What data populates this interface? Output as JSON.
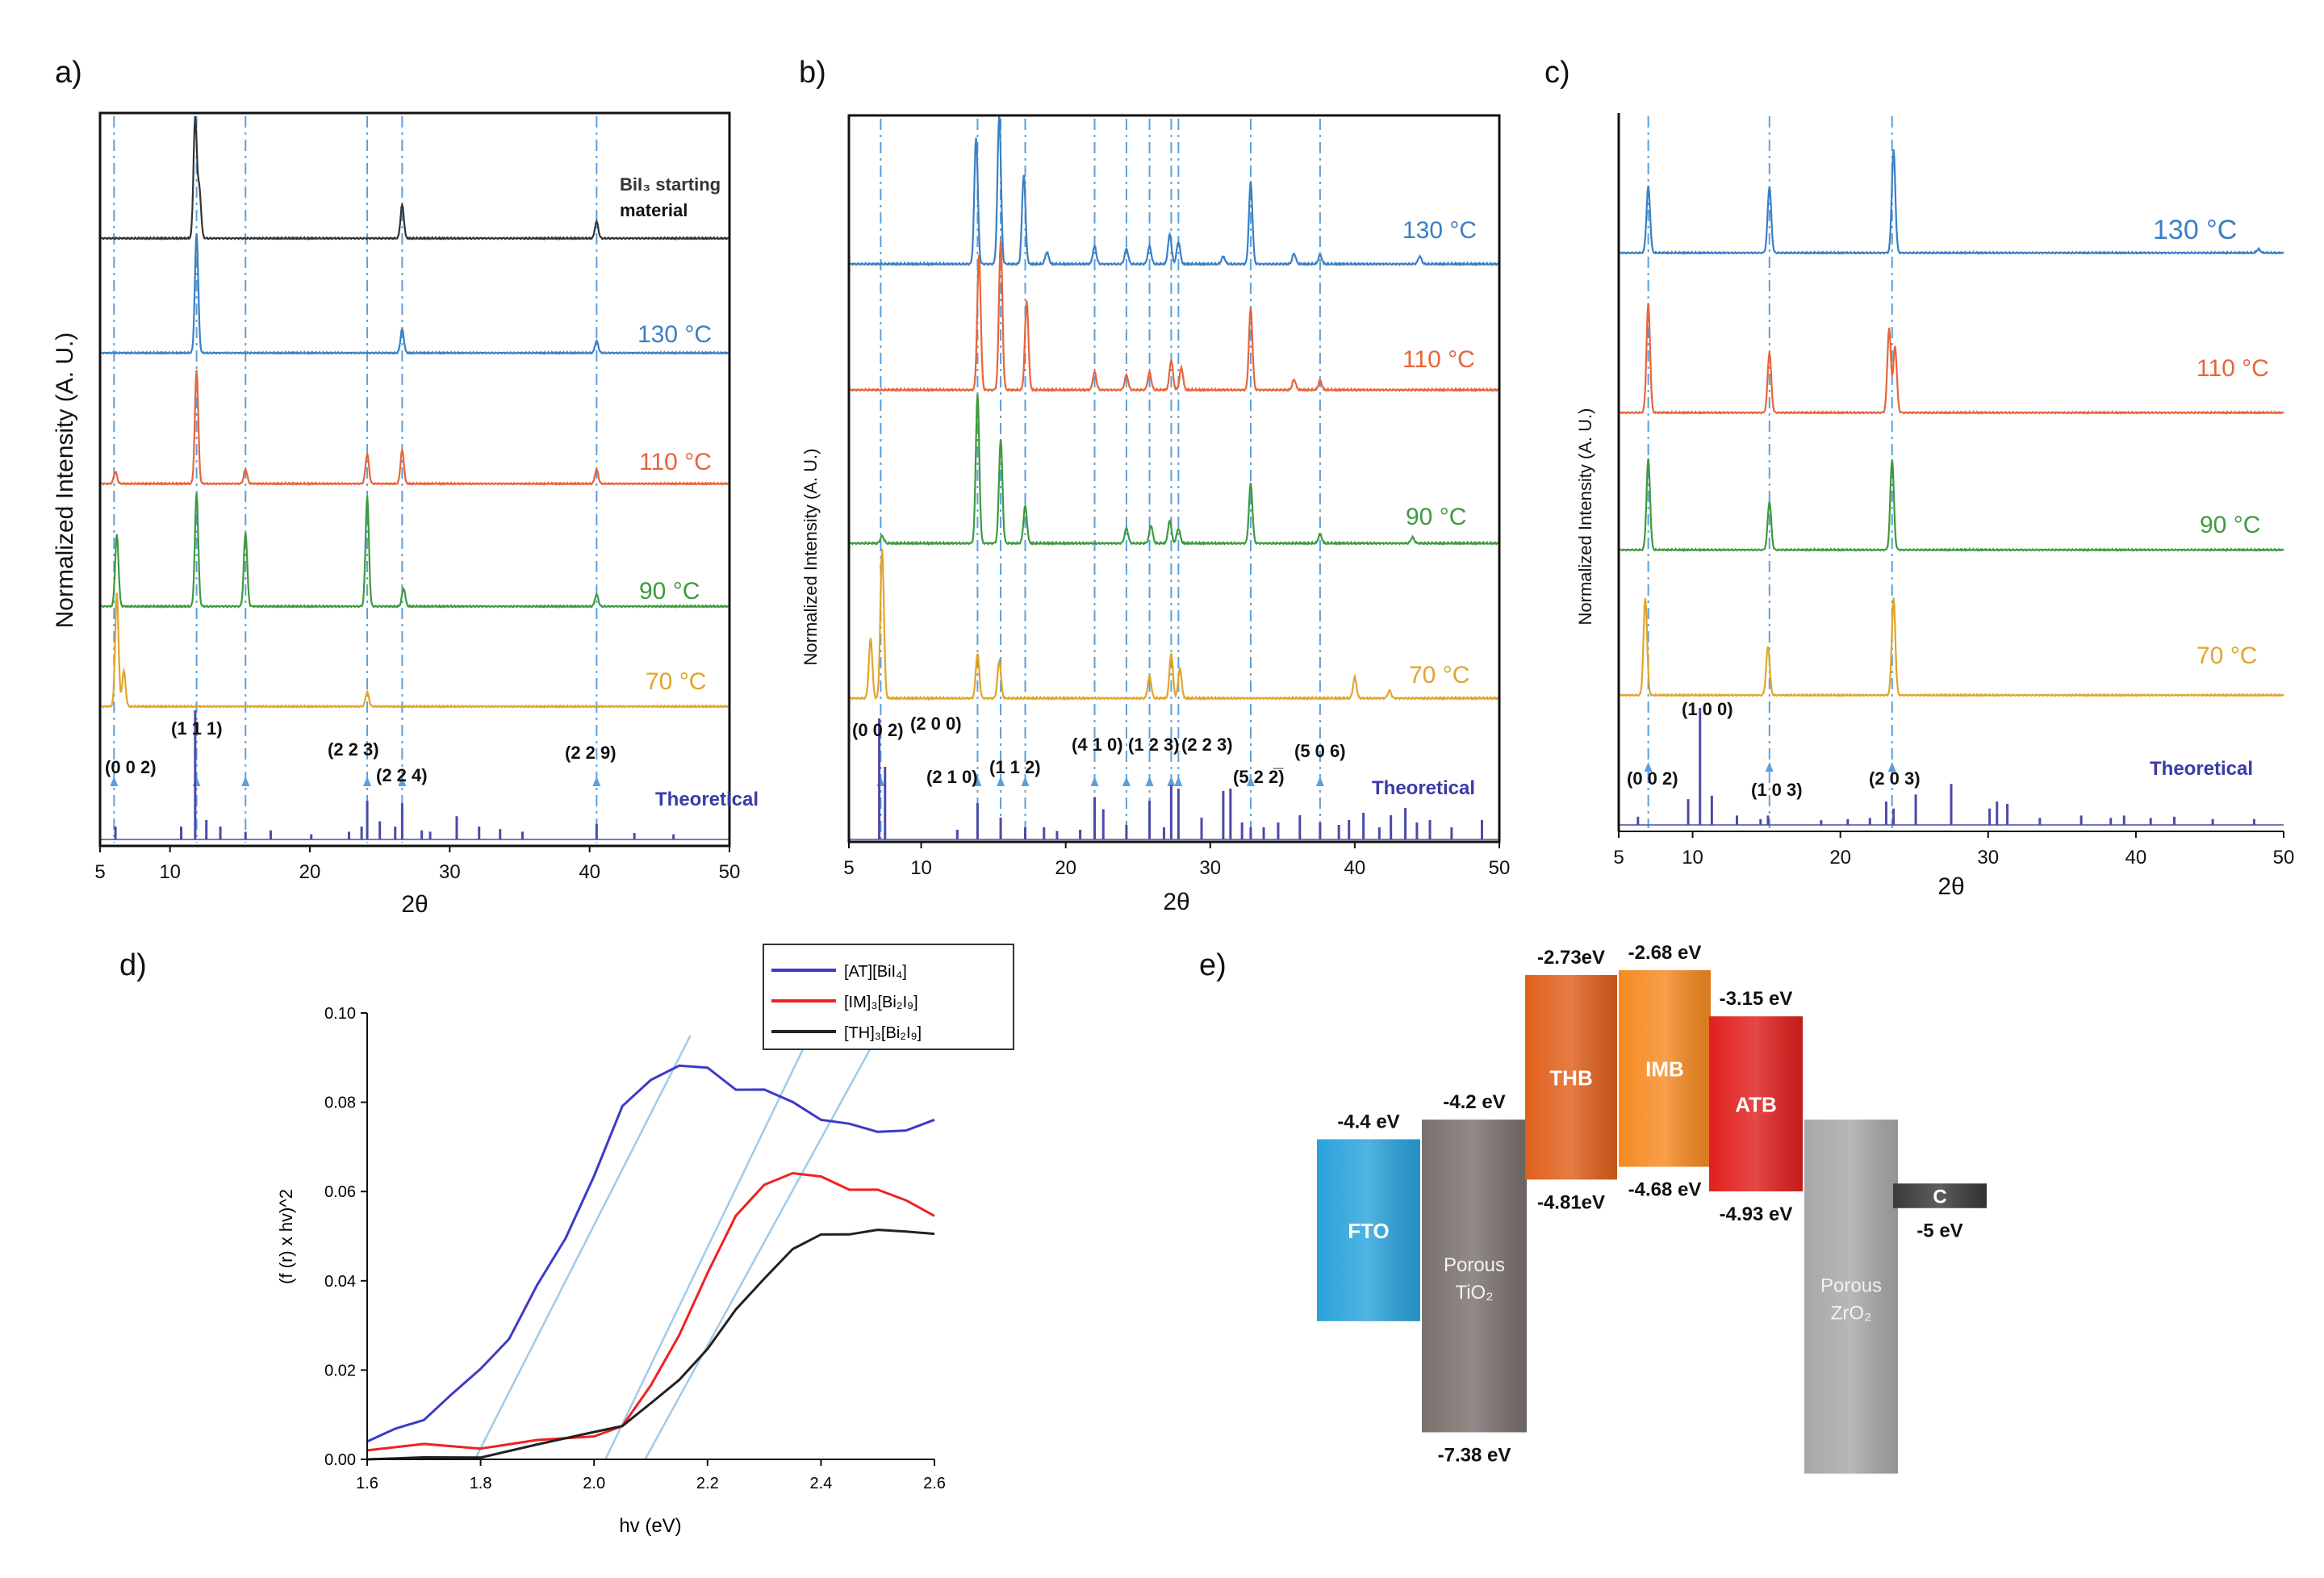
{
  "colors": {
    "bil3": "#333333",
    "c130": "#3a7fc4",
    "c110": "#e8643a",
    "c90": "#3e9a3e",
    "c70": "#e0a52a",
    "theoretical": "#4a4aa8",
    "guide": "#5aa0dc",
    "at_bil4": "#3b3bc8",
    "im_bi2i9": "#ee2222",
    "th_bi2i9": "#222222",
    "fto": "#2aa3dc",
    "tio2": "#7a716e",
    "thb": "#e0601c",
    "imb": "#f68a22",
    "atb": "#e0201e",
    "zro2": "#a8a8a8",
    "carbon": "#3a3a3a"
  },
  "chart_data": [
    {
      "panel": "a)",
      "type": "line",
      "title": "",
      "xlabel": "2θ",
      "ylabel": "Normalized Intensity (A. U.)",
      "xlim": [
        5,
        50
      ],
      "xticks": [
        5,
        10,
        20,
        30,
        40,
        50
      ],
      "traces": [
        {
          "name": "BiI₃ starting",
          "name2": "material",
          "color": "bil3",
          "peaks": [
            [
              11.8,
              1.0
            ],
            [
              12.1,
              0.4
            ],
            [
              26.6,
              0.28
            ],
            [
              40.5,
              0.14
            ]
          ]
        },
        {
          "name": "130 °C",
          "color": "c130",
          "peaks": [
            [
              11.9,
              1.0
            ],
            [
              26.6,
              0.2
            ],
            [
              40.5,
              0.1
            ]
          ]
        },
        {
          "name": "110 °C",
          "color": "c110",
          "peaks": [
            [
              6.1,
              0.1
            ],
            [
              11.9,
              0.95
            ],
            [
              15.4,
              0.12
            ],
            [
              24.1,
              0.25
            ],
            [
              26.6,
              0.28
            ],
            [
              40.5,
              0.12
            ]
          ]
        },
        {
          "name": "90 °C",
          "color": "c90",
          "peaks": [
            [
              6.2,
              0.6
            ],
            [
              11.9,
              0.95
            ],
            [
              15.4,
              0.62
            ],
            [
              24.1,
              0.92
            ],
            [
              26.7,
              0.15
            ],
            [
              40.5,
              0.1
            ]
          ]
        },
        {
          "name": "70 °C",
          "color": "c70",
          "peaks": [
            [
              6.2,
              0.95
            ],
            [
              6.7,
              0.3
            ],
            [
              24.1,
              0.12
            ]
          ]
        }
      ],
      "theoretical": {
        "name": "Theoretical",
        "peaks": [
          [
            6.1,
            0.1
          ],
          [
            10.8,
            0.1
          ],
          [
            11.8,
            1.0
          ],
          [
            12.6,
            0.15
          ],
          [
            13.6,
            0.1
          ],
          [
            15.4,
            0.06
          ],
          [
            17.2,
            0.07
          ],
          [
            20.1,
            0.04
          ],
          [
            22.8,
            0.06
          ],
          [
            23.7,
            0.1
          ],
          [
            24.1,
            0.3
          ],
          [
            25.0,
            0.14
          ],
          [
            26.1,
            0.1
          ],
          [
            26.6,
            0.28
          ],
          [
            28.0,
            0.07
          ],
          [
            28.6,
            0.06
          ],
          [
            30.5,
            0.18
          ],
          [
            32.1,
            0.1
          ],
          [
            33.6,
            0.08
          ],
          [
            35.2,
            0.06
          ],
          [
            40.5,
            0.12
          ],
          [
            43.2,
            0.05
          ],
          [
            46.0,
            0.04
          ]
        ]
      },
      "guides": [
        6.0,
        11.9,
        15.4,
        24.1,
        26.6,
        40.5
      ],
      "hkl": [
        "(0 0 2)",
        "(1 1 1)",
        "(2 2 3)",
        "(2 2 4)",
        "(2 2 9)"
      ]
    },
    {
      "panel": "b)",
      "type": "line",
      "title": "",
      "xlabel": "2θ",
      "ylabel": "Normalized Intensity (A. U.)",
      "xlim": [
        5,
        50
      ],
      "xticks": [
        5,
        10,
        20,
        30,
        40,
        50
      ],
      "traces": [
        {
          "name": "130 °C",
          "color": "c130",
          "peaks": [
            [
              13.8,
              0.85
            ],
            [
              15.4,
              1.0
            ],
            [
              17.1,
              0.6
            ],
            [
              18.7,
              0.08
            ],
            [
              22.0,
              0.12
            ],
            [
              24.2,
              0.1
            ],
            [
              25.8,
              0.12
            ],
            [
              27.2,
              0.2
            ],
            [
              27.8,
              0.15
            ],
            [
              30.9,
              0.05
            ],
            [
              32.8,
              0.55
            ],
            [
              35.8,
              0.07
            ],
            [
              37.6,
              0.06
            ],
            [
              44.5,
              0.05
            ]
          ]
        },
        {
          "name": "110 °C",
          "color": "c110",
          "peaks": [
            [
              14.0,
              0.9
            ],
            [
              15.5,
              1.0
            ],
            [
              17.3,
              0.6
            ],
            [
              22.0,
              0.12
            ],
            [
              24.2,
              0.1
            ],
            [
              25.8,
              0.12
            ],
            [
              27.3,
              0.2
            ],
            [
              28.0,
              0.15
            ],
            [
              32.8,
              0.55
            ],
            [
              35.8,
              0.07
            ],
            [
              37.6,
              0.06
            ]
          ]
        },
        {
          "name": "90 °C",
          "color": "c90",
          "peaks": [
            [
              7.3,
              0.05
            ],
            [
              13.9,
              1.0
            ],
            [
              15.5,
              0.7
            ],
            [
              17.2,
              0.25
            ],
            [
              24.2,
              0.1
            ],
            [
              25.9,
              0.12
            ],
            [
              27.2,
              0.15
            ],
            [
              27.8,
              0.1
            ],
            [
              32.8,
              0.4
            ],
            [
              37.6,
              0.06
            ],
            [
              44.0,
              0.04
            ]
          ]
        },
        {
          "name": "70 °C",
          "color": "c70",
          "peaks": [
            [
              6.5,
              0.4
            ],
            [
              7.3,
              1.0
            ],
            [
              13.9,
              0.3
            ],
            [
              15.4,
              0.25
            ],
            [
              25.8,
              0.15
            ],
            [
              27.3,
              0.3
            ],
            [
              27.9,
              0.2
            ],
            [
              40.0,
              0.14
            ],
            [
              42.4,
              0.05
            ]
          ]
        }
      ],
      "theoretical": {
        "name": "Theoretical",
        "peaks": [
          [
            7.1,
            1.0
          ],
          [
            7.5,
            0.6
          ],
          [
            12.5,
            0.08
          ],
          [
            13.9,
            0.3
          ],
          [
            15.5,
            0.18
          ],
          [
            17.2,
            0.1
          ],
          [
            18.5,
            0.1
          ],
          [
            19.4,
            0.07
          ],
          [
            21.0,
            0.08
          ],
          [
            22.0,
            0.35
          ],
          [
            22.6,
            0.25
          ],
          [
            24.2,
            0.12
          ],
          [
            25.8,
            0.32
          ],
          [
            26.8,
            0.1
          ],
          [
            27.3,
            0.45
          ],
          [
            27.8,
            0.42
          ],
          [
            29.4,
            0.18
          ],
          [
            30.9,
            0.4
          ],
          [
            31.4,
            0.42
          ],
          [
            32.2,
            0.14
          ],
          [
            32.8,
            0.1
          ],
          [
            33.7,
            0.1
          ],
          [
            34.7,
            0.14
          ],
          [
            36.2,
            0.2
          ],
          [
            37.6,
            0.14
          ],
          [
            38.9,
            0.12
          ],
          [
            39.6,
            0.16
          ],
          [
            40.6,
            0.22
          ],
          [
            41.7,
            0.1
          ],
          [
            42.5,
            0.2
          ],
          [
            43.5,
            0.26
          ],
          [
            44.3,
            0.14
          ],
          [
            45.2,
            0.16
          ],
          [
            46.7,
            0.1
          ],
          [
            48.8,
            0.16
          ]
        ]
      },
      "guides": [
        7.2,
        13.9,
        15.5,
        17.2,
        22.0,
        24.2,
        25.8,
        27.3,
        27.8,
        32.8,
        37.6
      ],
      "hkl": [
        "(0 0 2)",
        "(2 0 0)",
        "(2 1 0)",
        "(1 1 2)",
        "(4 1 0)",
        "(1 2 3)",
        "(2 2 3)",
        "(5 2 2̅)",
        "(5 0 6)"
      ]
    },
    {
      "panel": "c)",
      "type": "line",
      "title": "",
      "xlabel": "2θ",
      "ylabel": "Normalized Intensity (A. U.)",
      "xlim": [
        5,
        50
      ],
      "xticks": [
        5,
        10,
        20,
        30,
        40,
        50
      ],
      "traces": [
        {
          "name": "130 °C",
          "color": "c130",
          "peaks": [
            [
              7.0,
              0.55
            ],
            [
              15.2,
              0.55
            ],
            [
              23.6,
              0.85
            ],
            [
              48.3,
              0.03
            ]
          ]
        },
        {
          "name": "110 °C",
          "color": "c110",
          "peaks": [
            [
              7.0,
              0.9
            ],
            [
              15.2,
              0.5
            ],
            [
              23.3,
              0.7
            ],
            [
              23.7,
              0.55
            ]
          ]
        },
        {
          "name": "90 °C",
          "color": "c90",
          "peaks": [
            [
              7.0,
              0.75
            ],
            [
              15.2,
              0.4
            ],
            [
              23.5,
              0.75
            ]
          ]
        },
        {
          "name": "70 °C",
          "color": "c70",
          "peaks": [
            [
              6.8,
              0.8
            ],
            [
              15.1,
              0.4
            ],
            [
              23.6,
              0.8
            ]
          ]
        }
      ],
      "theoretical": {
        "name": "Theoretical",
        "peaks": [
          [
            6.3,
            0.07
          ],
          [
            9.7,
            0.22
          ],
          [
            10.5,
            1.0
          ],
          [
            11.3,
            0.25
          ],
          [
            13.0,
            0.08
          ],
          [
            14.6,
            0.05
          ],
          [
            15.1,
            0.08
          ],
          [
            18.7,
            0.04
          ],
          [
            20.5,
            0.05
          ],
          [
            22.0,
            0.06
          ],
          [
            23.1,
            0.2
          ],
          [
            23.6,
            0.14
          ],
          [
            25.1,
            0.26
          ],
          [
            27.5,
            0.35
          ],
          [
            30.1,
            0.14
          ],
          [
            30.6,
            0.2
          ],
          [
            31.3,
            0.18
          ],
          [
            33.5,
            0.06
          ],
          [
            36.3,
            0.08
          ],
          [
            38.3,
            0.06
          ],
          [
            39.2,
            0.08
          ],
          [
            41.0,
            0.06
          ],
          [
            42.6,
            0.07
          ],
          [
            45.2,
            0.05
          ],
          [
            48.0,
            0.05
          ]
        ]
      },
      "guides": [
        7.0,
        15.2,
        23.5
      ],
      "hkl": [
        "(0 0 2)",
        "(1 0 0)",
        "(1 0 3)",
        "(2 0 3)"
      ]
    },
    {
      "panel": "d)",
      "type": "line",
      "xlabel": "hv (eV)",
      "ylabel": "(f (r) x hv)^2",
      "xlim": [
        1.6,
        2.6
      ],
      "ylim": [
        0.0,
        0.1
      ],
      "xticks": [
        "1.6",
        "1.8",
        "2.0",
        "2.2",
        "2.4",
        "2.6"
      ],
      "yticks": [
        "0.00",
        "0.02",
        "0.04",
        "0.06",
        "0.08",
        "0.10"
      ],
      "legend_position": "top-right",
      "series": [
        {
          "name": "[AT][BiI₄]",
          "color": "at_bil4",
          "x": [
            1.6,
            1.65,
            1.7,
            1.75,
            1.8,
            1.85,
            1.9,
            1.95,
            2.0,
            2.05,
            2.1,
            2.15,
            2.2,
            2.25,
            2.3,
            2.35,
            2.4,
            2.45,
            2.5,
            2.55,
            2.6
          ],
          "y": [
            0.004,
            0.006,
            0.01,
            0.014,
            0.02,
            0.028,
            0.038,
            0.05,
            0.064,
            0.078,
            0.086,
            0.088,
            0.087,
            0.084,
            0.082,
            0.08,
            0.077,
            0.074,
            0.074,
            0.074,
            0.075
          ]
        },
        {
          "name": "[IM]₃[Bi₂I₉]",
          "color": "im_bi2i9",
          "x": [
            1.6,
            1.7,
            1.8,
            1.9,
            2.0,
            2.05,
            2.1,
            2.15,
            2.2,
            2.25,
            2.3,
            2.35,
            2.4,
            2.45,
            2.5,
            2.55,
            2.6
          ],
          "y": [
            0.002,
            0.003,
            0.003,
            0.004,
            0.005,
            0.008,
            0.016,
            0.028,
            0.042,
            0.054,
            0.062,
            0.064,
            0.063,
            0.061,
            0.06,
            0.058,
            0.055
          ]
        },
        {
          "name": "[TH]₃[Bi₂I₉]",
          "color": "th_bi2i9",
          "x": [
            1.6,
            1.7,
            1.8,
            1.9,
            2.0,
            2.05,
            2.1,
            2.15,
            2.2,
            2.25,
            2.3,
            2.35,
            2.4,
            2.45,
            2.5,
            2.55,
            2.6
          ],
          "y": [
            0.0,
            0.0,
            0.001,
            0.003,
            0.006,
            0.008,
            0.012,
            0.018,
            0.025,
            0.033,
            0.041,
            0.047,
            0.05,
            0.051,
            0.051,
            0.051,
            0.051
          ]
        }
      ],
      "tangents": [
        [
          [
            1.79,
            0.0
          ],
          [
            2.17,
            0.095
          ]
        ],
        [
          [
            2.02,
            0.0
          ],
          [
            2.38,
            0.095
          ]
        ],
        [
          [
            2.09,
            0.0
          ],
          [
            2.5,
            0.095
          ]
        ]
      ]
    },
    {
      "panel": "e)",
      "type": "diagram",
      "ylim": [
        -8.0,
        -2.5
      ],
      "blocks": [
        {
          "name": "FTO",
          "name2": "",
          "top": -4.4,
          "bottom": -6.25,
          "color": "fto",
          "top_label": "-4.4 eV",
          "bottom_label": ""
        },
        {
          "name": "Porous",
          "name2": "TiO₂",
          "top": -4.2,
          "bottom": -7.38,
          "color": "tio2",
          "top_label": "-4.2 eV",
          "bottom_label": "-7.38 eV"
        },
        {
          "name": "THB",
          "name2": "",
          "top": -2.73,
          "bottom": -4.81,
          "color": "thb",
          "top_label": "-2.73eV",
          "bottom_label": "-4.81eV"
        },
        {
          "name": "IMB",
          "name2": "",
          "top": -2.68,
          "bottom": -4.68,
          "color": "imb",
          "top_label": "-2.68 eV",
          "bottom_label": "-4.68 eV"
        },
        {
          "name": "ATB",
          "name2": "",
          "top": -3.15,
          "bottom": -4.93,
          "color": "atb",
          "top_label": "-3.15 eV",
          "bottom_label": "-4.93 eV"
        },
        {
          "name": "Porous",
          "name2": "ZrO₂",
          "top": -4.2,
          "bottom": -7.8,
          "color": "zro2",
          "top_label": "",
          "bottom_label": ""
        },
        {
          "name": "C",
          "name2": "",
          "top": -4.85,
          "bottom": -5.1,
          "color": "carbon",
          "top_label": "",
          "bottom_label": "-5 eV"
        }
      ]
    }
  ]
}
